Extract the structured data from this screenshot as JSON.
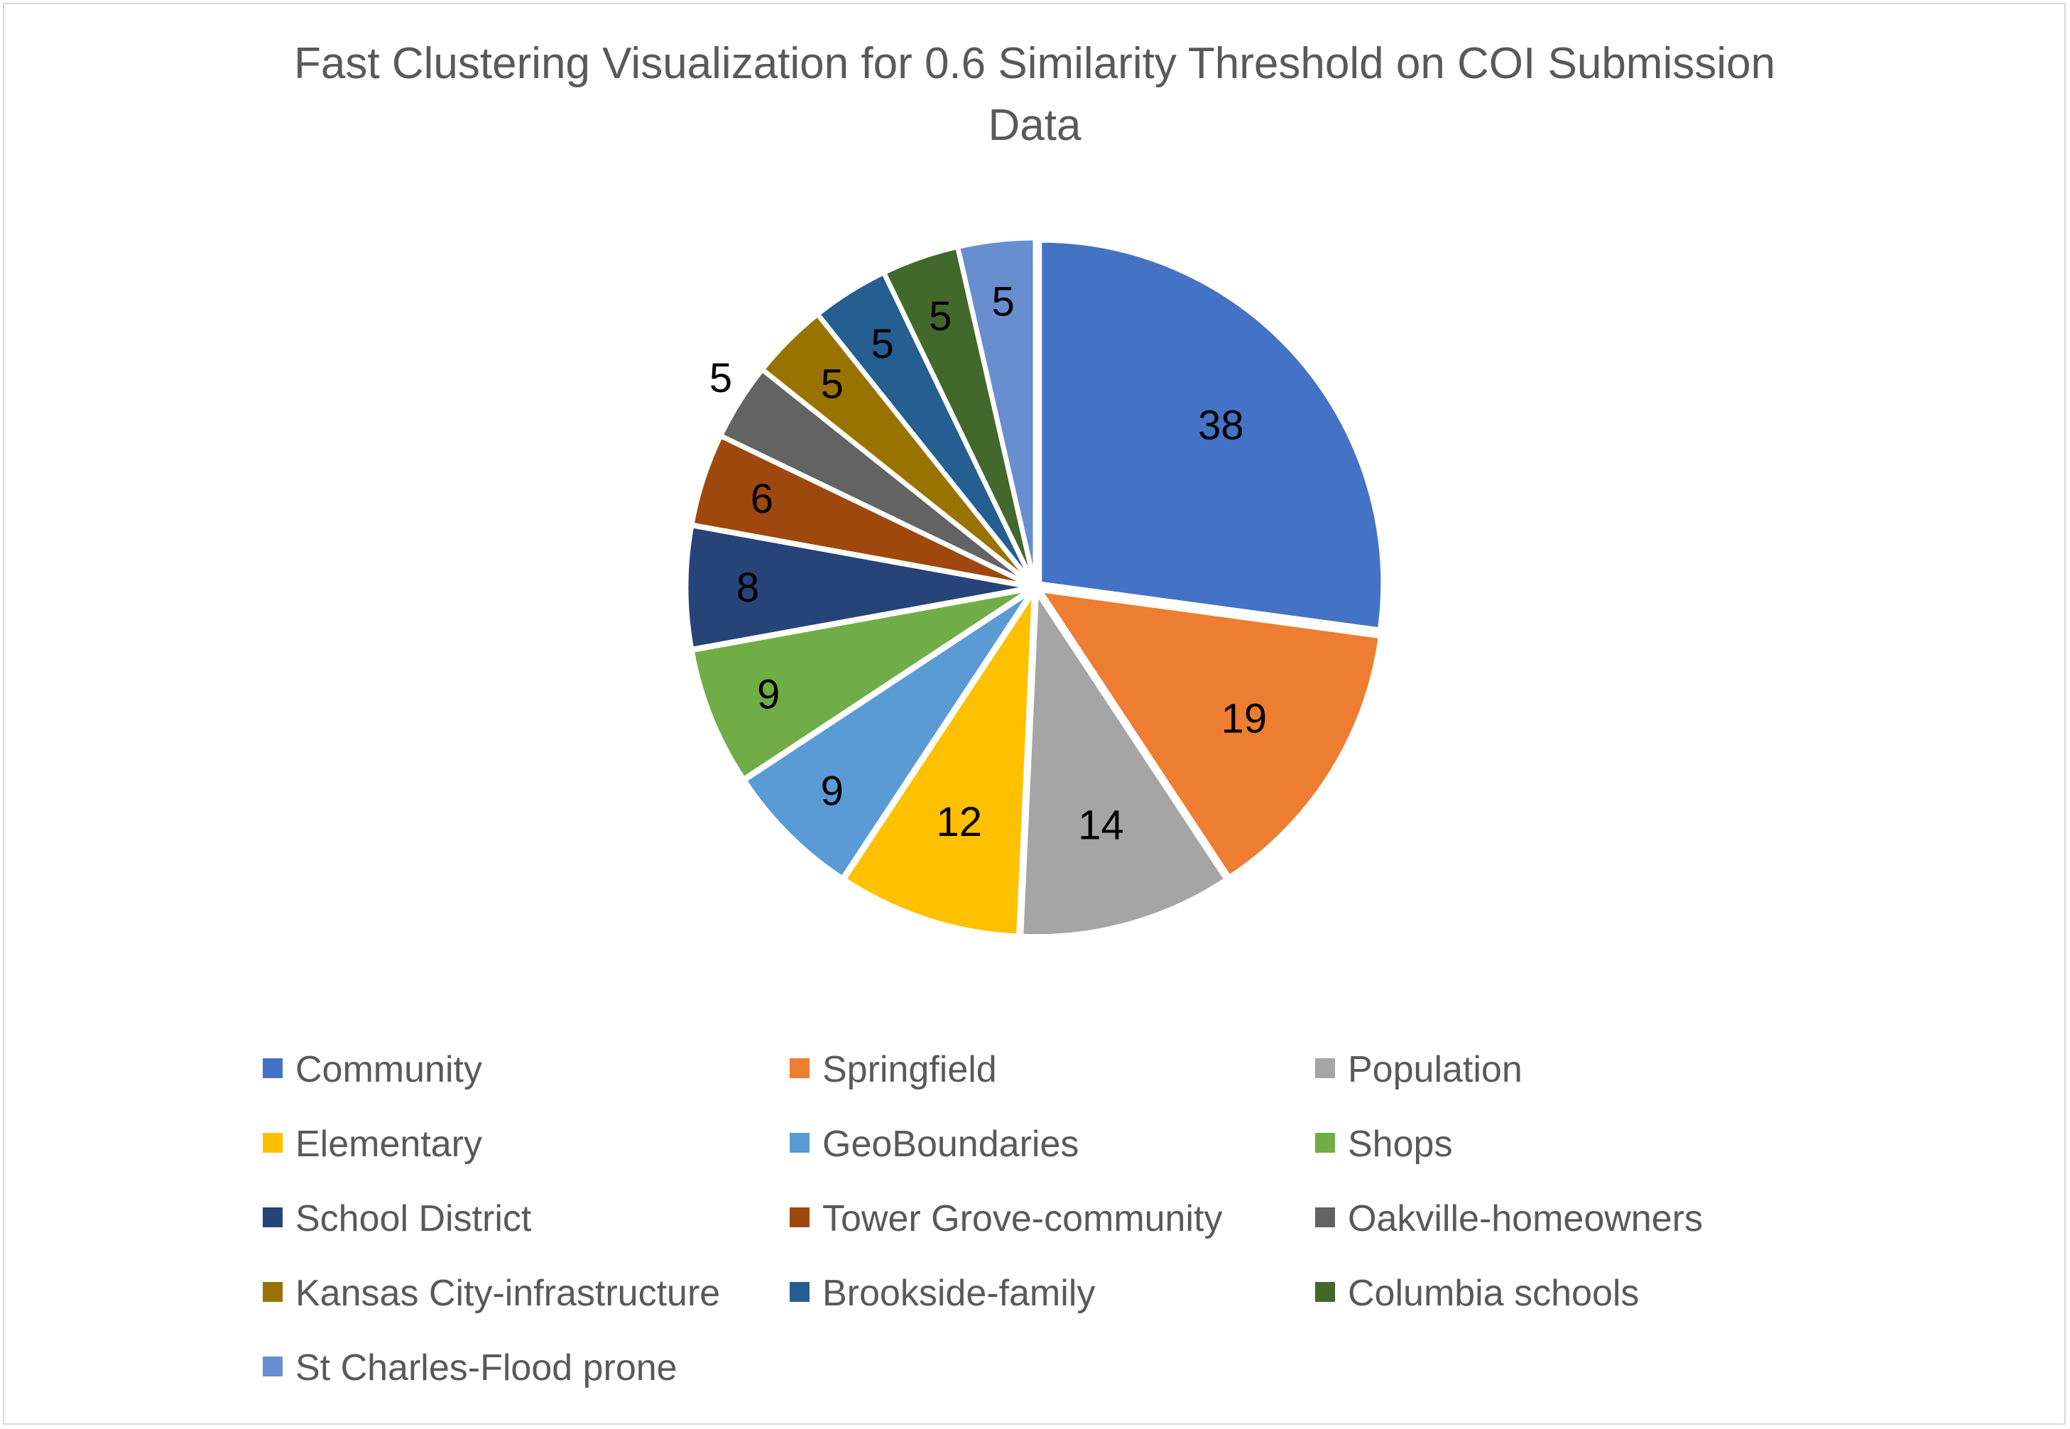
{
  "chart_data": {
    "type": "pie",
    "title": "Fast Clustering Visualization for 0.6 Similarity Threshold on COI Submission Data",
    "title_lines": [
      "Fast Clustering Visualization for 0.6 Similarity Threshold on COI Submission",
      "Data"
    ],
    "legend_position": "bottom",
    "slices": [
      {
        "label": "Community",
        "value": 38,
        "color": "#4472C4"
      },
      {
        "label": "Springfield",
        "value": 19,
        "color": "#ED7D31"
      },
      {
        "label": "Population",
        "value": 14,
        "color": "#A5A5A5"
      },
      {
        "label": "Elementary",
        "value": 12,
        "color": "#FFC000"
      },
      {
        "label": "GeoBoundaries",
        "value": 9,
        "color": "#5B9BD5"
      },
      {
        "label": "Shops",
        "value": 9,
        "color": "#70AD47"
      },
      {
        "label": "School District",
        "value": 8,
        "color": "#264478"
      },
      {
        "label": "Tower Grove-community",
        "value": 6,
        "color": "#9E480E"
      },
      {
        "label": "Oakville-homeowners",
        "value": 5,
        "color": "#636363"
      },
      {
        "label": "Kansas City-infrastructure",
        "value": 5,
        "color": "#997300"
      },
      {
        "label": "Brookside-family",
        "value": 5,
        "color": "#255E91"
      },
      {
        "label": "Columbia schools",
        "value": 5,
        "color": "#43682B"
      },
      {
        "label": "St Charles-Flood prone",
        "value": 5,
        "color": "#698ED0"
      }
    ]
  }
}
